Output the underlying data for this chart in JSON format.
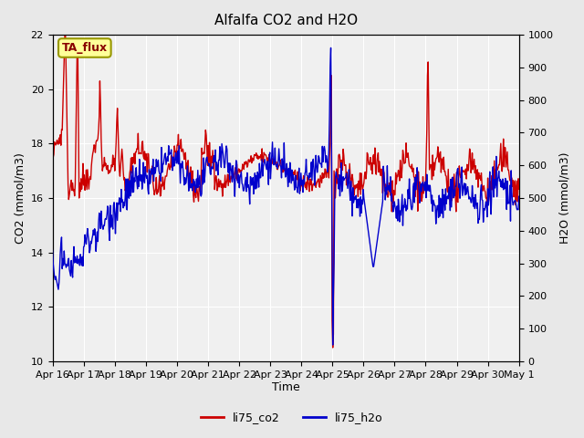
{
  "title": "Alfalfa CO2 and H2O",
  "xlabel": "Time",
  "ylabel_left": "CO2 (mmol/m3)",
  "ylabel_right": "H2O (mmol/m3)",
  "co2_ylim": [
    10,
    22
  ],
  "h2o_ylim": [
    0,
    1000
  ],
  "co2_yticks": [
    10,
    12,
    14,
    16,
    18,
    20,
    22
  ],
  "h2o_yticks": [
    0,
    100,
    200,
    300,
    400,
    500,
    600,
    700,
    800,
    900,
    1000
  ],
  "co2_color": "#cc0000",
  "h2o_color": "#0000cc",
  "bg_color": "#e8e8e8",
  "plot_bg_color": "#f0f0f0",
  "annotation_text": "TA_flux",
  "annotation_bg": "#ffff99",
  "annotation_border": "#999900",
  "xtick_labels": [
    "Apr 16",
    "Apr 17",
    "Apr 18",
    "Apr 19",
    "Apr 20",
    "Apr 21",
    "Apr 22",
    "Apr 23",
    "Apr 24",
    "Apr 25",
    "Apr 26",
    "Apr 27",
    "Apr 28",
    "Apr 29",
    "Apr 30",
    "May 1"
  ],
  "legend_labels": [
    "li75_co2",
    "li75_h2o"
  ],
  "line_width": 1.0
}
